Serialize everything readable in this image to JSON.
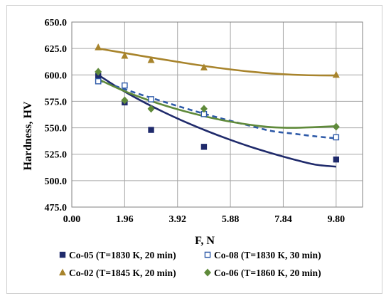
{
  "chart_data": {
    "type": "scatter",
    "title": "",
    "xlabel": "F, N",
    "ylabel": "Hardness, HV",
    "xlim": [
      0,
      10.78
    ],
    "ylim": [
      475,
      650
    ],
    "x_ticks": [
      0.0,
      1.96,
      3.92,
      5.88,
      7.84,
      9.8
    ],
    "x_tick_labels": [
      "0.00",
      "1.96",
      "3.92",
      "5.88",
      "7.84",
      "9.80"
    ],
    "y_ticks": [
      475,
      500,
      525,
      550,
      575,
      600,
      625,
      650
    ],
    "y_tick_labels": [
      "475.0",
      "500.0",
      "525.0",
      "550.0",
      "575.0",
      "600.0",
      "625.0",
      "650.0"
    ],
    "grid": true,
    "legend_position": "bottom",
    "series": [
      {
        "name": "Co-05 (T=1830 K, 20 min)",
        "marker": "filled-square",
        "color": "#1f2a6b",
        "line_style": "solid",
        "x": [
          0.98,
          1.96,
          2.94,
          4.9,
          9.8
        ],
        "y": [
          599,
          574,
          548,
          532,
          520
        ],
        "trend": [
          600,
          586.9,
          575.4,
          565.1,
          555.7,
          547.2,
          539.4,
          532.3,
          526.0,
          520.3,
          515.3,
          513.2
        ]
      },
      {
        "name": "Co-08 (T=1830 K, 30 min)",
        "marker": "open-square",
        "color": "#2e5aa8",
        "line_style": "dashed",
        "x": [
          0.98,
          1.96,
          2.94,
          4.9,
          9.8
        ],
        "y": [
          594,
          590,
          577,
          563,
          541
        ],
        "trend": [
          595,
          588.0,
          581.2,
          574.8,
          568.6,
          562.7,
          557.2,
          552.0,
          547.0,
          544.5,
          542.0,
          540.0
        ]
      },
      {
        "name": "Co-02 (T=1845 K, 20 min)",
        "marker": "filled-triangle",
        "color": "#a8842c",
        "line_style": "solid",
        "x": [
          0.98,
          1.96,
          2.94,
          4.9,
          9.8
        ],
        "y": [
          626,
          618,
          614,
          607,
          600
        ],
        "trend": [
          625,
          621.5,
          618.0,
          614.6,
          611.3,
          608.2,
          605.5,
          603.2,
          601.4,
          600.2,
          599.6,
          599.5
        ]
      },
      {
        "name": "Co-06 (T=1860 K, 20 min)",
        "marker": "filled-diamond",
        "color": "#5f8a3a",
        "line_style": "solid",
        "x": [
          0.98,
          1.96,
          2.94,
          4.9,
          9.8
        ],
        "y": [
          603,
          576,
          568,
          568,
          551
        ],
        "trend": [
          596,
          586.5,
          578.5,
          571.6,
          565.6,
          560.5,
          556.2,
          552.9,
          550.6,
          550.0,
          550.6,
          551.5
        ]
      }
    ]
  }
}
